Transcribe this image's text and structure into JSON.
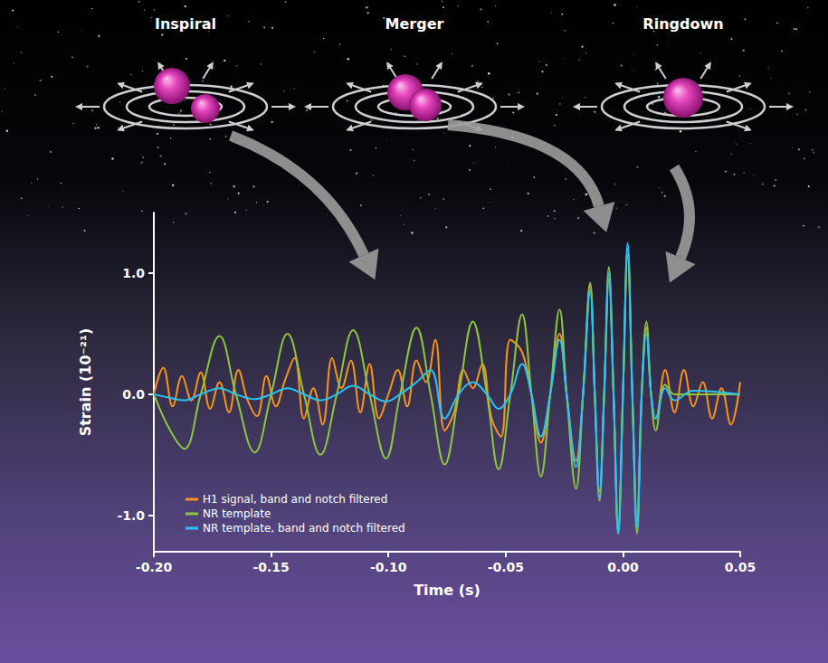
{
  "illustration": {
    "stages": [
      "Inspiral",
      "Merger",
      "Ringdown"
    ]
  },
  "chart_data": {
    "type": "line",
    "x_label": "Time (s)",
    "y_label": "Strain (10⁻²¹)",
    "xlim": [
      -0.2,
      0.05
    ],
    "xticks": [
      {
        "value": -0.2,
        "label": "-0.20"
      },
      -0.15,
      {
        "value": -0.1,
        "label": "-0.10"
      },
      -0.05,
      {
        "value": 0,
        "label": "0.00"
      },
      0.05
    ],
    "ylim": [
      -1.3,
      1.5
    ],
    "yticks": [
      {
        "value": -1,
        "label": "-1.0"
      },
      {
        "value": 0,
        "label": "0.0"
      },
      {
        "value": 1,
        "label": "1.0"
      }
    ],
    "grid": false,
    "legend": "lower left",
    "series": [
      {
        "name": "H1 signal, band and notch filtered",
        "color": "#f7941d",
        "x": [
          -0.2,
          -0.196,
          -0.192,
          -0.188,
          -0.184,
          -0.18,
          -0.176,
          -0.172,
          -0.168,
          -0.164,
          -0.16,
          -0.156,
          -0.152,
          -0.148,
          -0.144,
          -0.14,
          -0.136,
          -0.132,
          -0.128,
          -0.124,
          -0.12,
          -0.116,
          -0.112,
          -0.108,
          -0.104,
          -0.1,
          -0.096,
          -0.092,
          -0.088,
          -0.084,
          -0.08,
          -0.076,
          -0.072,
          -0.068,
          -0.064,
          -0.06,
          -0.056,
          -0.052,
          -0.048,
          -0.043,
          -0.039,
          -0.035,
          -0.031,
          -0.027,
          -0.024,
          -0.02,
          -0.017,
          -0.014,
          -0.012,
          -0.01,
          -0.008,
          -0.006,
          -0.004,
          -0.002,
          0,
          0.002,
          0.004,
          0.006,
          0.008,
          0.01,
          0.012,
          0.014,
          0.018,
          0.022,
          0.026,
          0.03,
          0.034,
          0.038,
          0.042,
          0.046,
          0.05
        ],
        "values": [
          0,
          0.22,
          -0.1,
          0.15,
          -0.05,
          0.18,
          -0.12,
          0.1,
          -0.15,
          0.2,
          -0.05,
          -0.18,
          0.15,
          -0.1,
          0.12,
          0.3,
          -0.2,
          0.05,
          -0.25,
          0.3,
          0.05,
          0.28,
          -0.15,
          0.25,
          -0.2,
          0,
          0.2,
          -0.1,
          0.28,
          0.1,
          0.45,
          -0.3,
          -0.15,
          0.2,
          0.05,
          0.25,
          -0.2,
          -0.35,
          0.45,
          0.35,
          0,
          -0.4,
          0,
          0.5,
          0,
          -0.55,
          0,
          0.9,
          0,
          -0.8,
          0,
          0.95,
          0,
          -1.1,
          0,
          1.15,
          0,
          -1.05,
          0,
          0.55,
          0,
          -0.2,
          0.2,
          -0.15,
          0.2,
          -0.1,
          0.1,
          -0.2,
          0.05,
          -0.25,
          0.1
        ]
      },
      {
        "name": "NR template",
        "color": "#8dc63f",
        "x": [
          -0.2,
          -0.193,
          -0.187,
          -0.18,
          -0.172,
          -0.165,
          -0.157,
          -0.15,
          -0.143,
          -0.136,
          -0.129,
          -0.122,
          -0.115,
          -0.108,
          -0.101,
          -0.095,
          -0.088,
          -0.082,
          -0.076,
          -0.07,
          -0.064,
          -0.058,
          -0.053,
          -0.048,
          -0.043,
          -0.039,
          -0.035,
          -0.031,
          -0.027,
          -0.024,
          -0.02,
          -0.017,
          -0.014,
          -0.012,
          -0.01,
          -0.008,
          -0.006,
          -0.004,
          -0.002,
          0,
          0.002,
          0.004,
          0.006,
          0.008,
          0.01,
          0.012,
          0.014,
          0.018,
          0.022,
          0.03,
          0.05
        ],
        "values": [
          0,
          -0.3,
          -0.45,
          0,
          0.48,
          0,
          -0.48,
          0,
          0.5,
          0,
          -0.5,
          0,
          0.53,
          0,
          -0.53,
          0,
          0.55,
          0,
          -0.58,
          0,
          0.6,
          0,
          -0.62,
          0,
          0.66,
          0,
          -0.68,
          0,
          0.7,
          0,
          -0.78,
          0,
          0.92,
          0,
          -0.88,
          0,
          1.05,
          0,
          -1.15,
          0,
          1.2,
          0,
          -1.15,
          0,
          0.6,
          0,
          -0.3,
          0.08,
          0,
          0,
          0
        ]
      },
      {
        "name": "NR template, band and notch filtered",
        "color": "#27c4f4",
        "x": [
          -0.2,
          -0.193,
          -0.187,
          -0.18,
          -0.172,
          -0.165,
          -0.157,
          -0.15,
          -0.143,
          -0.136,
          -0.129,
          -0.122,
          -0.115,
          -0.108,
          -0.101,
          -0.095,
          -0.088,
          -0.082,
          -0.076,
          -0.07,
          -0.064,
          -0.058,
          -0.053,
          -0.048,
          -0.043,
          -0.039,
          -0.035,
          -0.031,
          -0.027,
          -0.024,
          -0.02,
          -0.017,
          -0.014,
          -0.012,
          -0.01,
          -0.008,
          -0.006,
          -0.004,
          -0.002,
          0,
          0.002,
          0.004,
          0.006,
          0.008,
          0.01,
          0.012,
          0.014,
          0.018,
          0.022,
          0.03,
          0.05
        ],
        "values": [
          0,
          -0.03,
          -0.05,
          0,
          0.05,
          0,
          -0.04,
          0,
          0.05,
          0,
          -0.05,
          0,
          0.07,
          0,
          -0.06,
          0,
          0.1,
          0.2,
          -0.2,
          0,
          0.1,
          0,
          -0.12,
          0,
          0.25,
          0,
          -0.35,
          0,
          0.45,
          0,
          -0.6,
          0,
          0.85,
          0,
          -0.85,
          0,
          1.0,
          0,
          -1.15,
          0,
          1.25,
          0,
          -1.1,
          0,
          0.5,
          0,
          -0.2,
          0.05,
          -0.05,
          0.03,
          0
        ]
      }
    ]
  }
}
